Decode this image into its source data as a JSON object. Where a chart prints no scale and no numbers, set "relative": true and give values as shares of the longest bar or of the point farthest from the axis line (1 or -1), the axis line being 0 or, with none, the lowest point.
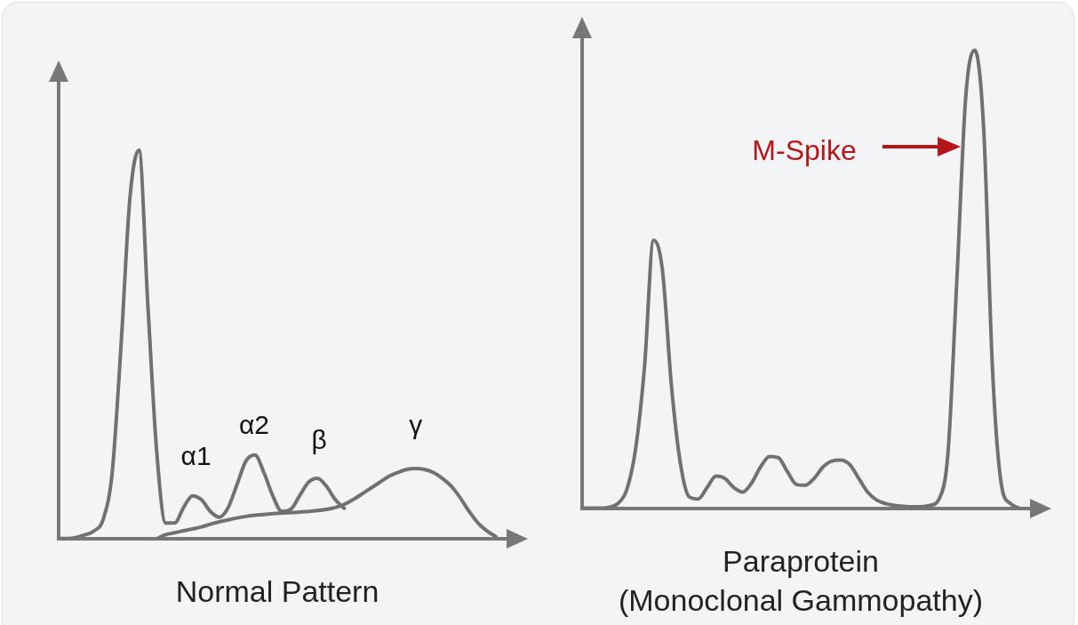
{
  "chart_data": [
    {
      "type": "line",
      "title": "Normal Pattern",
      "relative": true,
      "legend": false,
      "grid": false,
      "marker": "none",
      "categories": [
        null,
        null,
        null,
        null,
        null,
        null,
        null,
        null,
        null,
        null,
        null,
        null,
        null,
        null,
        null,
        null,
        null,
        null,
        null,
        null,
        null,
        null,
        null,
        null,
        null,
        null,
        null,
        null,
        null,
        null,
        null,
        null,
        null,
        null,
        null,
        null,
        null,
        null,
        null,
        null,
        null,
        null,
        null,
        null,
        null,
        null,
        null,
        null,
        null,
        null
      ],
      "series": [
        {
          "color": "#717171",
          "values": [
            0,
            0,
            0.003,
            0.01,
            0.02,
            0.05,
            0.17,
            0.5,
            0.88,
            1,
            0.6,
            0.22,
            0.04,
            0.04,
            0.08,
            0.11,
            0.1,
            0.07,
            0.055,
            0.08,
            0.14,
            0.2,
            0.215,
            0.17,
            0.11,
            0.07,
            0.075,
            0.11,
            0.145,
            0.155,
            0.135,
            0.1,
            0.078,
            null,
            null,
            null,
            null,
            null,
            null,
            null,
            null,
            null,
            null,
            null,
            null,
            null,
            null,
            null,
            null,
            null
          ]
        },
        {
          "color": "#717171",
          "values": [
            null,
            null,
            null,
            null,
            null,
            null,
            null,
            null,
            null,
            null,
            null,
            0,
            0.01,
            0.015,
            0.02,
            0.025,
            0.03,
            0.037,
            0.043,
            0.048,
            0.053,
            0.057,
            0.06,
            0.062,
            0.064,
            0.066,
            0.067,
            0.068,
            0.07,
            0.072,
            0.075,
            0.08,
            0.088,
            0.1,
            0.115,
            0.13,
            0.145,
            0.16,
            0.17,
            0.178,
            0.18,
            0.178,
            0.17,
            0.155,
            0.135,
            0.105,
            0.07,
            0.04,
            0.02,
            0.005
          ]
        }
      ],
      "annotations": [
        "α1",
        "α2",
        "β",
        "γ"
      ]
    },
    {
      "type": "line",
      "title": "Paraprotein\n(Monoclonal Gammopathy)",
      "relative": true,
      "legend": false,
      "grid": false,
      "marker": "none",
      "categories": [
        null,
        null,
        null,
        null,
        null,
        null,
        null,
        null,
        null,
        null,
        null,
        null,
        null,
        null,
        null,
        null,
        null,
        null,
        null,
        null,
        null,
        null,
        null,
        null,
        null,
        null,
        null,
        null,
        null,
        null,
        null,
        null,
        null,
        null,
        null,
        null,
        null,
        null,
        null,
        null,
        null,
        null,
        null,
        null,
        null,
        null,
        null,
        null,
        null,
        null
      ],
      "series": [
        {
          "color": "#717171",
          "values": [
            0,
            0,
            0,
            0.002,
            0.01,
            0.04,
            0.13,
            0.31,
            0.585,
            0.52,
            0.27,
            0.1,
            0.025,
            0.02,
            0.045,
            0.07,
            0.065,
            0.045,
            0.035,
            0.055,
            0.09,
            0.113,
            0.11,
            0.08,
            0.052,
            0.05,
            0.065,
            0.09,
            0.103,
            0.105,
            0.095,
            0.065,
            0.035,
            0.018,
            0.01,
            0.006,
            0.004,
            0.003,
            0.003,
            0.006,
            0.02,
            0.12,
            0.5,
            0.9,
            1,
            0.83,
            0.3,
            0.05,
            0.01,
            0
          ]
        }
      ],
      "annotations": [
        "M-Spike"
      ]
    }
  ]
}
